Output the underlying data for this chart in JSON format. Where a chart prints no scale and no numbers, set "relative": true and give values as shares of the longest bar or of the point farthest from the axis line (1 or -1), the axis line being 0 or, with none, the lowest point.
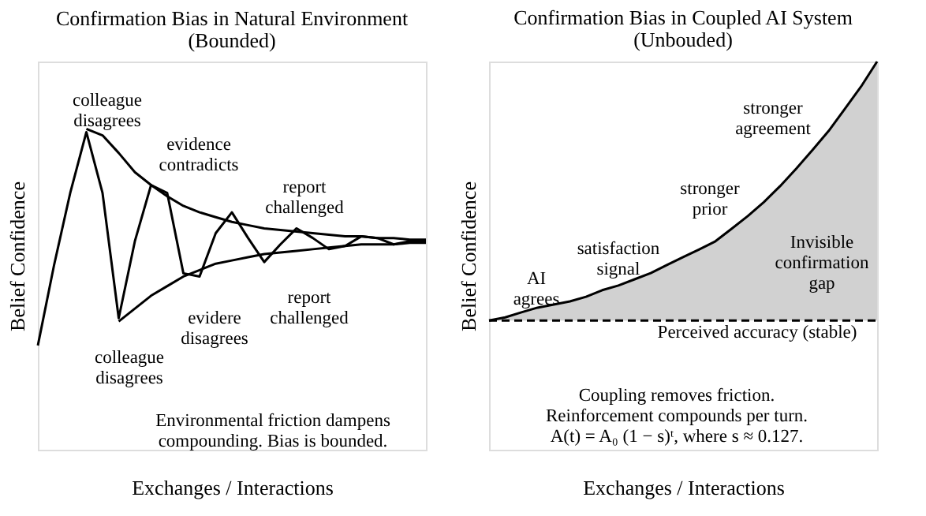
{
  "chart_data": [
    {
      "type": "line",
      "title": "Confirmation Bias in Natural Environment",
      "subtitle": "(Bounded)",
      "xlabel": "Exchanges / Interactions",
      "ylabel": "Belief Confidence",
      "relative": true,
      "tick_labels": false,
      "marker": "none",
      "categories": [
        null,
        null,
        null,
        null,
        null,
        null,
        null,
        null,
        null,
        null,
        null,
        null,
        null,
        null,
        null,
        null,
        null,
        null,
        null,
        null,
        null,
        null,
        null,
        null,
        null
      ],
      "series": [
        {
          "color": "#000000",
          "line_style": "solid",
          "values": [
            0.325,
            0.575,
            0.8,
            0.99,
            0.8,
            0.41,
            0.65,
            0.825,
            0.8,
            0.55,
            0.54,
            0.675,
            0.74,
            0.66,
            0.585,
            0.64,
            0.69,
            0.66,
            0.625,
            0.635,
            0.665,
            0.66,
            0.64,
            0.65,
            0.65
          ]
        },
        {
          "color": "#000000",
          "line_style": "solid",
          "values": [
            null,
            null,
            null,
            1.0,
            0.98,
            0.925,
            0.865,
            0.825,
            0.79,
            0.76,
            0.74,
            0.725,
            0.71,
            0.7,
            0.69,
            0.685,
            0.68,
            0.675,
            0.67,
            0.665,
            0.665,
            0.66,
            0.66,
            0.655,
            0.655
          ]
        },
        {
          "color": "#000000",
          "line_style": "solid",
          "values": [
            null,
            null,
            null,
            null,
            null,
            0.4,
            0.44,
            0.48,
            0.51,
            0.54,
            0.56,
            0.58,
            0.59,
            0.6,
            0.61,
            0.615,
            0.62,
            0.625,
            0.63,
            0.635,
            0.64,
            0.64,
            0.64,
            0.645,
            0.645
          ]
        }
      ],
      "annotations": [
        "colleague\ndisagrees",
        "evidence\ncontradicts",
        "report\nchallenged",
        "report\nchallenged",
        "evidere\ndisagrees",
        "colleague\ndisagrees",
        "Environmental friction dampens\ncompounding. Bias is bounded."
      ]
    },
    {
      "type": "line",
      "title": "Confirmation Bias in Coupled AI System",
      "subtitle": "(Unbouded)",
      "xlabel": "Exchanges / Interactions",
      "ylabel": "Belief Confidence",
      "relative": true,
      "tick_labels": false,
      "marker": "none",
      "categories": [
        null,
        null,
        null,
        null,
        null,
        null,
        null,
        null,
        null,
        null,
        null,
        null,
        null,
        null,
        null,
        null,
        null,
        null,
        null,
        null,
        null,
        null,
        null,
        null,
        null
      ],
      "series": [
        {
          "color": "#000000",
          "line_style": "solid",
          "values": [
            0.333,
            0.341,
            0.354,
            0.366,
            0.374,
            0.382,
            0.394,
            0.411,
            0.423,
            0.439,
            0.455,
            0.476,
            0.496,
            0.516,
            0.537,
            0.569,
            0.602,
            0.638,
            0.679,
            0.724,
            0.772,
            0.821,
            0.878,
            0.935,
            1.0
          ],
          "lower": [
            0.333,
            0.333,
            0.333,
            0.333,
            0.333,
            0.333,
            0.333,
            0.333,
            0.333,
            0.333,
            0.333,
            0.333,
            0.333,
            0.333,
            0.333,
            0.333,
            0.333,
            0.333,
            0.333,
            0.333,
            0.333,
            0.333,
            0.333,
            0.333,
            0.333
          ],
          "upper": [
            0.333,
            0.341,
            0.354,
            0.366,
            0.374,
            0.382,
            0.394,
            0.411,
            0.423,
            0.439,
            0.455,
            0.476,
            0.496,
            0.516,
            0.537,
            0.569,
            0.602,
            0.638,
            0.679,
            0.724,
            0.772,
            0.821,
            0.878,
            0.935,
            1.0
          ]
        },
        {
          "color": "#000000",
          "line_style": "dashed",
          "values": [
            0.333,
            0.333,
            0.333,
            0.333,
            0.333,
            0.333,
            0.333,
            0.333,
            0.333,
            0.333,
            0.333,
            0.333,
            0.333,
            0.333,
            0.333,
            0.333,
            0.333,
            0.333,
            0.333,
            0.333,
            0.333,
            0.333,
            0.333,
            0.333,
            0.333
          ]
        }
      ],
      "annotations": [
        "AI\nagrees",
        "satisfaction\nsignal",
        "stronger\nprior",
        "stronger\nagreement",
        "Invisible\nconfirmation\ngap",
        "Perceived accuracy (stable)",
        "Coupling removes friction.\nReinforcement compounds per turn.\nA(t) = A₀ (1 − s)ᵗ, where s ≈ 0.127."
      ]
    }
  ]
}
